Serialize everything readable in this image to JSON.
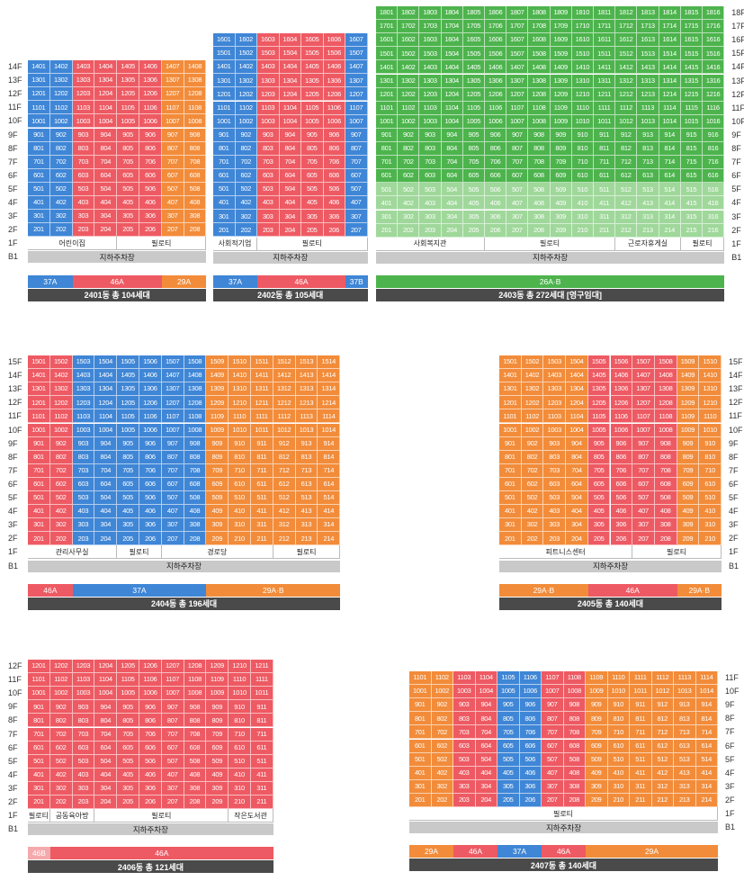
{
  "colors": {
    "blue": "#3f86d6",
    "red": "#ee5a63",
    "orange": "#f28c3a",
    "green": "#4db44d",
    "green_light": "#9fd89a",
    "red_light": "#f4a9ac",
    "orange_light": "#f7bd8f",
    "b1": "#c9c9c9",
    "summary": "#4a4a4a"
  },
  "floor_prefix": "F",
  "basement_label": "B1",
  "buildings": [
    {
      "id": "2401",
      "floors": [
        14,
        13,
        12,
        11,
        10,
        9,
        8,
        7,
        6,
        5,
        4,
        3,
        2
      ],
      "units": 8,
      "color_map": [
        "blue",
        "blue",
        "red",
        "red",
        "red",
        "red",
        "orange",
        "orange"
      ],
      "light_floors": [],
      "first_floor": [
        {
          "label": "어린이집",
          "span": 4
        },
        {
          "label": "필로티",
          "span": 4
        }
      ],
      "b1_text": "지하주차장",
      "legend": [
        {
          "label": "37A",
          "color": "blue",
          "span": 2
        },
        {
          "label": "46A",
          "color": "red",
          "span": 4
        },
        {
          "label": "29A",
          "color": "orange",
          "span": 2
        }
      ],
      "summary": "2401동 총 104세대"
    },
    {
      "id": "2402",
      "floors": [
        16,
        15,
        14,
        13,
        12,
        11,
        10,
        9,
        8,
        7,
        6,
        5,
        4,
        3,
        2
      ],
      "units": 7,
      "color_map": [
        "blue",
        "blue",
        "red",
        "red",
        "red",
        "red",
        "blue"
      ],
      "light_floors": [],
      "first_floor": [
        {
          "label": "사회적기업",
          "span": 2
        },
        {
          "label": "필로티",
          "span": 5
        }
      ],
      "b1_text": "지하주차장",
      "legend": [
        {
          "label": "37A",
          "color": "blue",
          "span": 2
        },
        {
          "label": "46A",
          "color": "red",
          "span": 4
        },
        {
          "label": "37B",
          "color": "blue",
          "span": 1
        }
      ],
      "summary": "2402동 총 105세대"
    },
    {
      "id": "2403",
      "floors": [
        18,
        17,
        16,
        15,
        14,
        13,
        12,
        11,
        10,
        9,
        8,
        7,
        6,
        5,
        4,
        3,
        2
      ],
      "units": 16,
      "color_map": [
        "green",
        "green",
        "green",
        "green",
        "green",
        "green",
        "green",
        "green",
        "green",
        "green",
        "green",
        "green",
        "green",
        "green",
        "green",
        "green"
      ],
      "light_floors": [
        5,
        4,
        3,
        2
      ],
      "first_floor": [
        {
          "label": "사회복지관",
          "span": 5
        },
        {
          "label": "필로티",
          "span": 6
        },
        {
          "label": "근로자휴게실",
          "span": 3
        },
        {
          "label": "필로티",
          "span": 2
        }
      ],
      "b1_text": "지하주차장",
      "legend": [
        {
          "label": "26A·B",
          "color": "green",
          "span": 16
        }
      ],
      "summary": "2403동 총 272세대 [영구임대]"
    },
    {
      "id": "2404",
      "floors": [
        15,
        14,
        13,
        12,
        11,
        10,
        9,
        8,
        7,
        6,
        5,
        4,
        3,
        2
      ],
      "units": 14,
      "color_map": [
        "red",
        "red",
        "blue",
        "blue",
        "blue",
        "blue",
        "blue",
        "blue",
        "orange",
        "orange",
        "orange",
        "orange",
        "orange",
        "orange"
      ],
      "light_floors": [],
      "first_floor": [
        {
          "label": "관리사무실",
          "span": 4
        },
        {
          "label": "필로티",
          "span": 2
        },
        {
          "label": "경로당",
          "span": 5
        },
        {
          "label": "필로티",
          "span": 3
        }
      ],
      "b1_text": "지하주차장",
      "legend": [
        {
          "label": "46A",
          "color": "red",
          "span": 2
        },
        {
          "label": "37A",
          "color": "blue",
          "span": 6
        },
        {
          "label": "29A·B",
          "color": "orange",
          "span": 6
        }
      ],
      "summary": "2404동 총 196세대"
    },
    {
      "id": "2405",
      "floors": [
        15,
        14,
        13,
        12,
        11,
        10,
        9,
        8,
        7,
        6,
        5,
        4,
        3,
        2
      ],
      "units": 10,
      "color_map": [
        "orange",
        "orange",
        "orange",
        "orange",
        "red",
        "red",
        "red",
        "red",
        "orange",
        "orange"
      ],
      "light_floors": [],
      "first_floor": [
        {
          "label": "피트니스센터",
          "span": 6
        },
        {
          "label": "필로티",
          "span": 4
        }
      ],
      "b1_text": "지하주차장",
      "legend": [
        {
          "label": "29A·B",
          "color": "orange",
          "span": 4
        },
        {
          "label": "46A",
          "color": "red",
          "span": 4
        },
        {
          "label": "29A·B",
          "color": "orange",
          "span": 2
        }
      ],
      "summary": "2405동 총 140세대"
    },
    {
      "id": "2406",
      "floors": [
        12,
        11,
        10,
        9,
        8,
        7,
        6,
        5,
        4,
        3,
        2
      ],
      "units": 11,
      "color_map": [
        "red",
        "red",
        "red",
        "red",
        "red",
        "red",
        "red",
        "red",
        "red",
        "red",
        "red"
      ],
      "light_floors": [],
      "first_floor": [
        {
          "label": "필로티",
          "span": 1
        },
        {
          "label": "공동육아방",
          "span": 2
        },
        {
          "label": "필로티",
          "span": 6
        },
        {
          "label": "작은도서관",
          "span": 2
        }
      ],
      "b1_text": "지하주차장",
      "legend": [
        {
          "label": "46B",
          "color": "red_light",
          "span": 1
        },
        {
          "label": "46A",
          "color": "red",
          "span": 10
        }
      ],
      "summary": "2406동 총 121세대"
    },
    {
      "id": "2407",
      "floors": [
        11,
        10,
        9,
        8,
        7,
        6,
        5,
        4,
        3,
        2
      ],
      "units": 14,
      "color_map": [
        "orange",
        "orange",
        "red",
        "red",
        "blue",
        "blue",
        "red",
        "red",
        "orange",
        "orange",
        "orange",
        "orange",
        "orange",
        "orange"
      ],
      "light_floors": [],
      "first_floor": [
        {
          "label": "필로티",
          "span": 14
        }
      ],
      "b1_text": "지하주차장",
      "legend": [
        {
          "label": "29A",
          "color": "orange",
          "span": 2
        },
        {
          "label": "46A",
          "color": "red",
          "span": 2
        },
        {
          "label": "37A",
          "color": "blue",
          "span": 2
        },
        {
          "label": "46A",
          "color": "red",
          "span": 2
        },
        {
          "label": "29A",
          "color": "orange",
          "span": 6
        }
      ],
      "summary": "2407동 총 140세대"
    }
  ]
}
